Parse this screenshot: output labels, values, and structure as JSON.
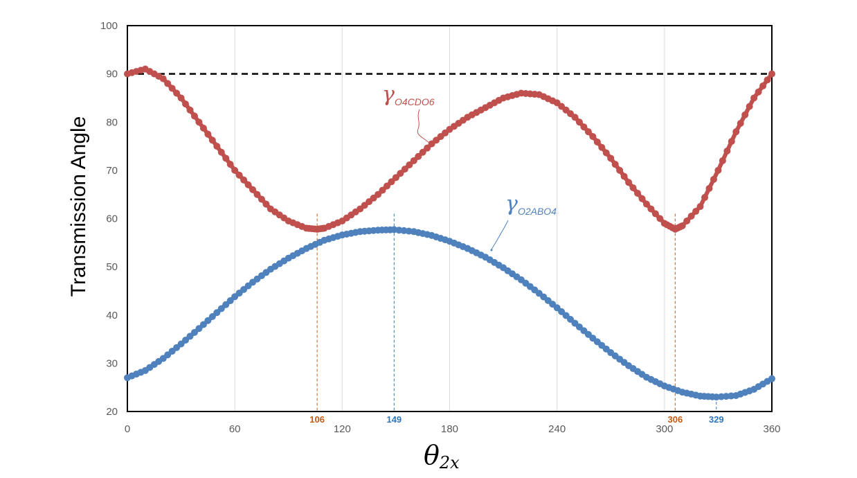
{
  "chart_data": {
    "type": "scatter",
    "ylabel": "Transmission Angle",
    "xlabel_main": "θ",
    "xlabel_sub": "2x",
    "xlim": [
      0,
      360
    ],
    "ylim": [
      20,
      100
    ],
    "x_ticks": [
      0,
      60,
      120,
      180,
      240,
      300,
      360
    ],
    "y_ticks": [
      20,
      30,
      40,
      50,
      60,
      70,
      80,
      90,
      100
    ],
    "grid": "vertical",
    "reference_line": {
      "y": 90,
      "style": "dashed"
    },
    "colors": {
      "red_series": "#c0504d",
      "blue_series": "#4f81bd",
      "red_marker": "#c55a11",
      "blue_marker": "#2e75b6"
    },
    "series": [
      {
        "name_main": "γ",
        "name_sub": "O4CDO6",
        "color": "#c0504d",
        "x": [
          0,
          10,
          20,
          30,
          40,
          50,
          60,
          70,
          80,
          90,
          100,
          106,
          110,
          120,
          130,
          140,
          150,
          160,
          170,
          180,
          190,
          200,
          210,
          220,
          230,
          240,
          250,
          260,
          270,
          280,
          290,
          300,
          306,
          310,
          320,
          330,
          340,
          350,
          360
        ],
        "y": [
          90,
          91,
          89,
          85,
          80,
          75,
          70,
          66,
          62,
          59.5,
          58,
          57.8,
          58,
          59.5,
          62,
          65,
          68.5,
          72,
          75.5,
          78.5,
          81,
          83,
          85,
          86,
          85.7,
          84,
          81,
          77,
          72.5,
          67.5,
          63,
          59,
          57.8,
          58.5,
          62.5,
          70,
          78,
          85,
          90
        ]
      },
      {
        "name_main": "γ",
        "name_sub": "O2ABO4",
        "color": "#4f81bd",
        "x": [
          0,
          10,
          20,
          30,
          40,
          50,
          60,
          70,
          80,
          90,
          100,
          110,
          120,
          130,
          140,
          149,
          160,
          170,
          180,
          190,
          200,
          210,
          220,
          230,
          240,
          250,
          260,
          270,
          280,
          290,
          300,
          310,
          320,
          329,
          340,
          350,
          360
        ],
        "y": [
          27,
          28.5,
          31,
          34,
          37.2,
          40.5,
          43.8,
          46.8,
          49.5,
          51.8,
          53.8,
          55.5,
          56.6,
          57.3,
          57.6,
          57.7,
          57.3,
          56.5,
          55.3,
          53.8,
          52,
          49.8,
          47.3,
          44.5,
          41.5,
          38.3,
          35.2,
          32.2,
          29.5,
          27.1,
          25.3,
          24,
          23.2,
          23,
          23.3,
          24.6,
          26.8
        ]
      }
    ],
    "vertical_markers": [
      {
        "x": 106,
        "label": "106",
        "color": "#c55a11",
        "y_top": 61
      },
      {
        "x": 149,
        "label": "149",
        "color": "#2e75b6",
        "y_top": 61
      },
      {
        "x": 306,
        "label": "306",
        "color": "#c55a11",
        "y_top": 61
      },
      {
        "x": 329,
        "label": "329",
        "color": "#2e75b6",
        "y_top": 23
      }
    ]
  }
}
